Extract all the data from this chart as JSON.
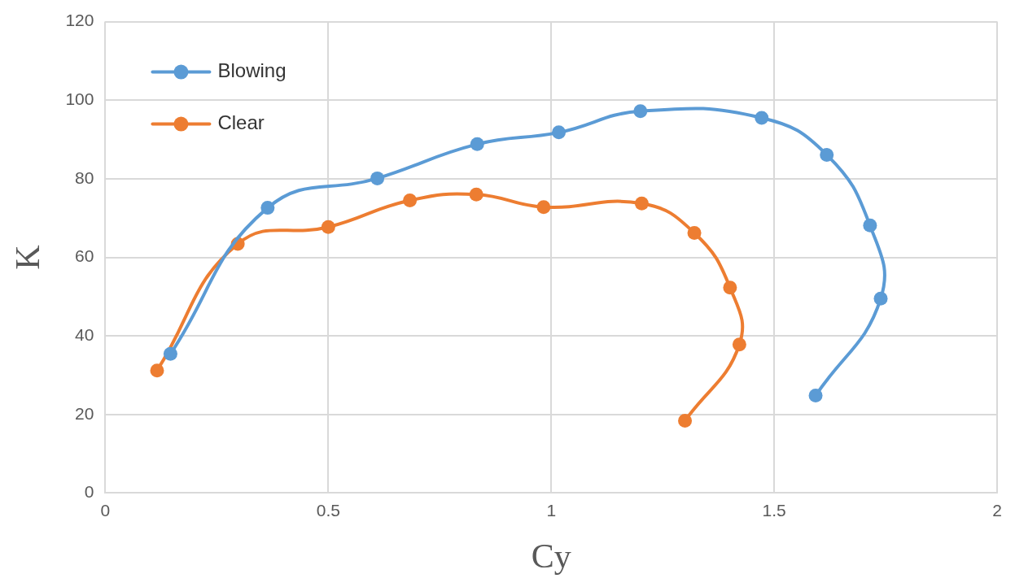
{
  "chart_data": {
    "type": "line",
    "xlabel": "Cy",
    "ylabel": "K",
    "xlim": [
      0,
      2
    ],
    "xticks": [
      0,
      0.5,
      1,
      1.5,
      2
    ],
    "ylim": [
      0,
      120
    ],
    "yticks": [
      0,
      20,
      40,
      60,
      80,
      100,
      120
    ],
    "grid": true,
    "legend": "top left",
    "marker": "circle",
    "line_style": "solid",
    "series": [
      {
        "name": "Blowing",
        "color": "#5b9bd5",
        "x": [
          0.146,
          0.364,
          0.61,
          0.834,
          1.017,
          1.2,
          1.472,
          1.618,
          1.715,
          1.739,
          1.593
        ],
        "values": [
          35.4,
          72.6,
          80.1,
          88.8,
          91.8,
          97.2,
          95.5,
          86.1,
          68.1,
          49.5,
          24.8
        ]
      },
      {
        "name": "Clear",
        "color": "#ed7d31",
        "x": [
          0.116,
          0.297,
          0.5,
          0.683,
          0.832,
          0.983,
          1.203,
          1.321,
          1.401,
          1.422,
          1.3
        ],
        "values": [
          31.2,
          63.4,
          67.7,
          74.5,
          76,
          72.8,
          73.7,
          66.2,
          52.3,
          37.8,
          18.4
        ]
      }
    ]
  }
}
